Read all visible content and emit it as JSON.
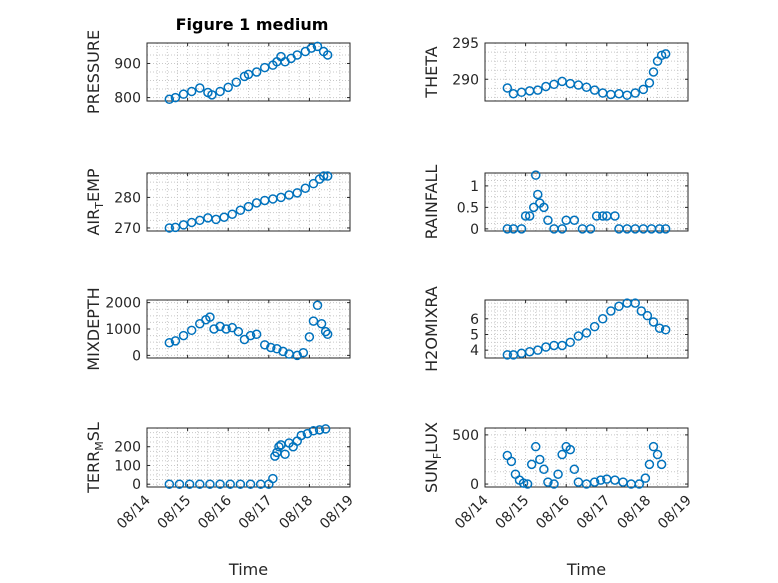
{
  "figure_title": "Figure 1 medium",
  "colors": {
    "marker": "#0072BD",
    "axis": "#262626",
    "grid": "#c8c8c8",
    "background": "#ffffff"
  },
  "chart_data": [
    {
      "type": "scatter",
      "ylabel": "PRESSURE",
      "ylim": [
        790,
        960
      ],
      "yticks": [
        800,
        900
      ],
      "x_date_ticks": [
        "08/14",
        "08/15",
        "08/16",
        "08/17",
        "08/18",
        "08/19"
      ],
      "xlim_days": [
        14,
        19
      ],
      "grid": true,
      "title": "Figure 1 medium",
      "points": [
        [
          14.55,
          795
        ],
        [
          14.7,
          800
        ],
        [
          14.9,
          810
        ],
        [
          15.1,
          818
        ],
        [
          15.3,
          828
        ],
        [
          15.5,
          815
        ],
        [
          15.6,
          808
        ],
        [
          15.8,
          818
        ],
        [
          16.0,
          830
        ],
        [
          16.2,
          845
        ],
        [
          16.4,
          862
        ],
        [
          16.5,
          868
        ],
        [
          16.7,
          875
        ],
        [
          16.9,
          888
        ],
        [
          17.1,
          895
        ],
        [
          17.2,
          905
        ],
        [
          17.3,
          920
        ],
        [
          17.4,
          905
        ],
        [
          17.55,
          915
        ],
        [
          17.7,
          925
        ],
        [
          17.9,
          935
        ],
        [
          18.05,
          945
        ],
        [
          18.2,
          950
        ],
        [
          18.35,
          935
        ],
        [
          18.45,
          925
        ]
      ]
    },
    {
      "type": "scatter",
      "ylabel": "THETA",
      "ylim": [
        287,
        295
      ],
      "yticks": [
        290,
        295
      ],
      "x_date_ticks": [
        "08/14",
        "08/15",
        "08/16",
        "08/17",
        "08/18",
        "08/19"
      ],
      "xlim_days": [
        14,
        19
      ],
      "grid": true,
      "points": [
        [
          14.55,
          288.8
        ],
        [
          14.7,
          288.0
        ],
        [
          14.9,
          288.2
        ],
        [
          15.1,
          288.4
        ],
        [
          15.3,
          288.5
        ],
        [
          15.5,
          289.0
        ],
        [
          15.7,
          289.3
        ],
        [
          15.9,
          289.7
        ],
        [
          16.1,
          289.4
        ],
        [
          16.3,
          289.2
        ],
        [
          16.5,
          288.9
        ],
        [
          16.7,
          288.5
        ],
        [
          16.9,
          288.1
        ],
        [
          17.1,
          287.9
        ],
        [
          17.3,
          288.0
        ],
        [
          17.5,
          287.8
        ],
        [
          17.7,
          288.1
        ],
        [
          17.9,
          288.6
        ],
        [
          18.05,
          289.5
        ],
        [
          18.15,
          291.0
        ],
        [
          18.25,
          292.5
        ],
        [
          18.35,
          293.3
        ],
        [
          18.45,
          293.5
        ]
      ]
    },
    {
      "type": "scatter",
      "ylabel": "AIR_TEMP",
      "ylabel_main": "AIR",
      "ylabel_sub": "T",
      "ylabel_rest": "EMP",
      "ylim": [
        269,
        288
      ],
      "yticks": [
        270,
        280
      ],
      "x_date_ticks": [
        "08/14",
        "08/15",
        "08/16",
        "08/17",
        "08/18",
        "08/19"
      ],
      "xlim_days": [
        14,
        19
      ],
      "grid": true,
      "points": [
        [
          14.55,
          270.0
        ],
        [
          14.7,
          270.2
        ],
        [
          14.9,
          271.0
        ],
        [
          15.1,
          271.8
        ],
        [
          15.3,
          272.5
        ],
        [
          15.5,
          273.3
        ],
        [
          15.7,
          272.8
        ],
        [
          15.9,
          273.5
        ],
        [
          16.1,
          274.5
        ],
        [
          16.3,
          275.8
        ],
        [
          16.5,
          277.0
        ],
        [
          16.7,
          278.2
        ],
        [
          16.9,
          279.0
        ],
        [
          17.1,
          279.5
        ],
        [
          17.3,
          280.0
        ],
        [
          17.5,
          280.8
        ],
        [
          17.7,
          281.5
        ],
        [
          17.9,
          283.0
        ],
        [
          18.1,
          284.5
        ],
        [
          18.25,
          286.0
        ],
        [
          18.35,
          287.0
        ],
        [
          18.45,
          287.0
        ]
      ]
    },
    {
      "type": "scatter",
      "ylabel": "RAINFALL",
      "ylim": [
        -0.05,
        1.3
      ],
      "yticks": [
        0,
        0.5,
        1
      ],
      "x_date_ticks": [
        "08/14",
        "08/15",
        "08/16",
        "08/17",
        "08/18",
        "08/19"
      ],
      "xlim_days": [
        14,
        19
      ],
      "grid": true,
      "points": [
        [
          14.55,
          0
        ],
        [
          14.7,
          0
        ],
        [
          14.9,
          0
        ],
        [
          15.0,
          0.3
        ],
        [
          15.1,
          0.3
        ],
        [
          15.2,
          0.5
        ],
        [
          15.25,
          1.25
        ],
        [
          15.3,
          0.8
        ],
        [
          15.35,
          0.6
        ],
        [
          15.45,
          0.5
        ],
        [
          15.55,
          0.2
        ],
        [
          15.7,
          0
        ],
        [
          15.9,
          0
        ],
        [
          16.0,
          0.2
        ],
        [
          16.2,
          0.2
        ],
        [
          16.4,
          0
        ],
        [
          16.6,
          0
        ],
        [
          16.75,
          0.3
        ],
        [
          16.9,
          0.3
        ],
        [
          17.0,
          0.3
        ],
        [
          17.2,
          0.3
        ],
        [
          17.3,
          0
        ],
        [
          17.5,
          0
        ],
        [
          17.7,
          0
        ],
        [
          17.9,
          0
        ],
        [
          18.1,
          0
        ],
        [
          18.3,
          0
        ],
        [
          18.45,
          0
        ]
      ]
    },
    {
      "type": "scatter",
      "ylabel": "MIXDEPTH",
      "ylim": [
        -100,
        2100
      ],
      "yticks": [
        0,
        1000,
        2000
      ],
      "x_date_ticks": [
        "08/14",
        "08/15",
        "08/16",
        "08/17",
        "08/18",
        "08/19"
      ],
      "xlim_days": [
        14,
        19
      ],
      "grid": true,
      "points": [
        [
          14.55,
          480
        ],
        [
          14.7,
          550
        ],
        [
          14.9,
          750
        ],
        [
          15.1,
          950
        ],
        [
          15.3,
          1200
        ],
        [
          15.45,
          1350
        ],
        [
          15.55,
          1450
        ],
        [
          15.65,
          1000
        ],
        [
          15.8,
          1100
        ],
        [
          15.95,
          1000
        ],
        [
          16.1,
          1050
        ],
        [
          16.25,
          900
        ],
        [
          16.4,
          600
        ],
        [
          16.55,
          750
        ],
        [
          16.7,
          800
        ],
        [
          16.9,
          400
        ],
        [
          17.05,
          300
        ],
        [
          17.2,
          250
        ],
        [
          17.35,
          150
        ],
        [
          17.5,
          50
        ],
        [
          17.7,
          0
        ],
        [
          17.85,
          100
        ],
        [
          18.0,
          700
        ],
        [
          18.1,
          1300
        ],
        [
          18.2,
          1900
        ],
        [
          18.3,
          1200
        ],
        [
          18.4,
          900
        ],
        [
          18.45,
          800
        ]
      ]
    },
    {
      "type": "scatter",
      "ylabel": "H2OMIXRA",
      "ylim": [
        3.5,
        7.2
      ],
      "yticks": [
        4,
        5,
        6
      ],
      "x_date_ticks": [
        "08/14",
        "08/15",
        "08/16",
        "08/17",
        "08/18",
        "08/19"
      ],
      "xlim_days": [
        14,
        19
      ],
      "grid": true,
      "points": [
        [
          14.55,
          3.7
        ],
        [
          14.7,
          3.7
        ],
        [
          14.9,
          3.8
        ],
        [
          15.1,
          3.9
        ],
        [
          15.3,
          4.0
        ],
        [
          15.5,
          4.2
        ],
        [
          15.7,
          4.3
        ],
        [
          15.9,
          4.3
        ],
        [
          16.1,
          4.5
        ],
        [
          16.3,
          4.9
        ],
        [
          16.5,
          5.1
        ],
        [
          16.7,
          5.5
        ],
        [
          16.9,
          6.0
        ],
        [
          17.1,
          6.5
        ],
        [
          17.3,
          6.8
        ],
        [
          17.5,
          7.0
        ],
        [
          17.7,
          7.0
        ],
        [
          17.85,
          6.5
        ],
        [
          18.0,
          6.2
        ],
        [
          18.15,
          5.8
        ],
        [
          18.3,
          5.4
        ],
        [
          18.45,
          5.3
        ]
      ]
    },
    {
      "type": "scatter",
      "ylabel": "TERR_MSL",
      "ylabel_main": "TERR",
      "ylabel_sub": "M",
      "ylabel_rest": "SL",
      "ylim": [
        -15,
        300
      ],
      "yticks": [
        0,
        100,
        200
      ],
      "x_date_ticks": [
        "08/14",
        "08/15",
        "08/16",
        "08/17",
        "08/18",
        "08/19"
      ],
      "xlim_days": [
        14,
        19
      ],
      "grid": true,
      "xlabel": "Time",
      "points": [
        [
          14.55,
          0
        ],
        [
          14.8,
          0
        ],
        [
          15.05,
          0
        ],
        [
          15.3,
          0
        ],
        [
          15.55,
          0
        ],
        [
          15.8,
          0
        ],
        [
          16.05,
          0
        ],
        [
          16.3,
          0
        ],
        [
          16.55,
          0
        ],
        [
          16.8,
          0
        ],
        [
          17.0,
          0
        ],
        [
          17.1,
          30
        ],
        [
          17.15,
          150
        ],
        [
          17.2,
          170
        ],
        [
          17.25,
          200
        ],
        [
          17.3,
          210
        ],
        [
          17.4,
          160
        ],
        [
          17.5,
          220
        ],
        [
          17.6,
          200
        ],
        [
          17.7,
          230
        ],
        [
          17.8,
          260
        ],
        [
          17.95,
          270
        ],
        [
          18.1,
          285
        ],
        [
          18.25,
          290
        ],
        [
          18.4,
          295
        ]
      ]
    },
    {
      "type": "scatter",
      "ylabel": "SUN_FLUX",
      "ylabel_main": "SUN",
      "ylabel_sub": "F",
      "ylabel_rest": "LUX",
      "ylim": [
        -30,
        570
      ],
      "yticks": [
        0,
        500
      ],
      "x_date_ticks": [
        "08/14",
        "08/15",
        "08/16",
        "08/17",
        "08/18",
        "08/19"
      ],
      "xlim_days": [
        14,
        19
      ],
      "grid": true,
      "xlabel": "Time",
      "points": [
        [
          14.55,
          290
        ],
        [
          14.65,
          230
        ],
        [
          14.75,
          100
        ],
        [
          14.85,
          40
        ],
        [
          14.95,
          10
        ],
        [
          15.05,
          0
        ],
        [
          15.15,
          200
        ],
        [
          15.25,
          380
        ],
        [
          15.35,
          250
        ],
        [
          15.45,
          150
        ],
        [
          15.55,
          20
        ],
        [
          15.7,
          0
        ],
        [
          15.8,
          100
        ],
        [
          15.9,
          300
        ],
        [
          16.0,
          380
        ],
        [
          16.1,
          350
        ],
        [
          16.2,
          150
        ],
        [
          16.3,
          20
        ],
        [
          16.5,
          0
        ],
        [
          16.7,
          20
        ],
        [
          16.85,
          40
        ],
        [
          17.0,
          50
        ],
        [
          17.2,
          40
        ],
        [
          17.4,
          20
        ],
        [
          17.6,
          0
        ],
        [
          17.8,
          0
        ],
        [
          17.95,
          60
        ],
        [
          18.05,
          200
        ],
        [
          18.15,
          380
        ],
        [
          18.25,
          300
        ],
        [
          18.35,
          200
        ]
      ]
    }
  ]
}
